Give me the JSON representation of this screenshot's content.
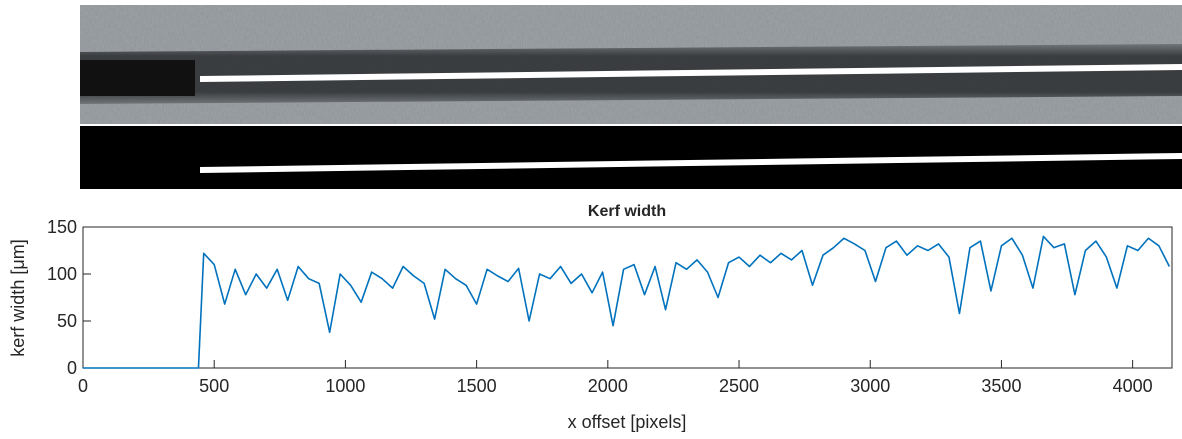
{
  "chart_data": {
    "type": "line",
    "title": "Kerf width",
    "xlabel": "x offset [pixels]",
    "ylabel": "kerf width [μm]",
    "x": [
      0,
      440,
      460,
      500,
      540,
      580,
      620,
      660,
      700,
      740,
      780,
      820,
      860,
      900,
      940,
      980,
      1020,
      1060,
      1100,
      1140,
      1180,
      1220,
      1260,
      1300,
      1340,
      1380,
      1420,
      1460,
      1500,
      1540,
      1580,
      1620,
      1660,
      1700,
      1740,
      1780,
      1820,
      1860,
      1900,
      1940,
      1980,
      2020,
      2060,
      2100,
      2140,
      2180,
      2220,
      2260,
      2300,
      2340,
      2380,
      2420,
      2460,
      2500,
      2540,
      2580,
      2620,
      2660,
      2700,
      2740,
      2780,
      2820,
      2860,
      2900,
      2940,
      2980,
      3020,
      3060,
      3100,
      3140,
      3180,
      3220,
      3260,
      3300,
      3340,
      3380,
      3420,
      3460,
      3500,
      3540,
      3580,
      3620,
      3660,
      3700,
      3740,
      3780,
      3820,
      3860,
      3900,
      3940,
      3980,
      4020,
      4060,
      4100,
      4140
    ],
    "series": [
      {
        "color": "#0072bd",
        "values": [
          0,
          0,
          122,
          110,
          68,
          105,
          78,
          100,
          85,
          105,
          72,
          108,
          95,
          90,
          38,
          100,
          88,
          70,
          102,
          95,
          85,
          108,
          98,
          90,
          52,
          105,
          95,
          88,
          68,
          105,
          98,
          92,
          106,
          50,
          100,
          95,
          108,
          90,
          100,
          80,
          102,
          45,
          105,
          110,
          78,
          108,
          62,
          112,
          105,
          115,
          102,
          75,
          112,
          118,
          108,
          120,
          112,
          122,
          115,
          125,
          88,
          120,
          128,
          138,
          132,
          125,
          92,
          128,
          135,
          120,
          130,
          125,
          132,
          118,
          58,
          128,
          135,
          82,
          130,
          138,
          120,
          85,
          140,
          128,
          132,
          78,
          125,
          135,
          118,
          85,
          130,
          125,
          138,
          130,
          108
        ]
      }
    ],
    "xlim": [
      0,
      4150
    ],
    "xticks": [
      0,
      500,
      1000,
      1500,
      2000,
      2500,
      3000,
      3500,
      4000
    ],
    "ylim": [
      0,
      150
    ],
    "yticks": [
      0,
      50,
      100,
      150
    ]
  }
}
